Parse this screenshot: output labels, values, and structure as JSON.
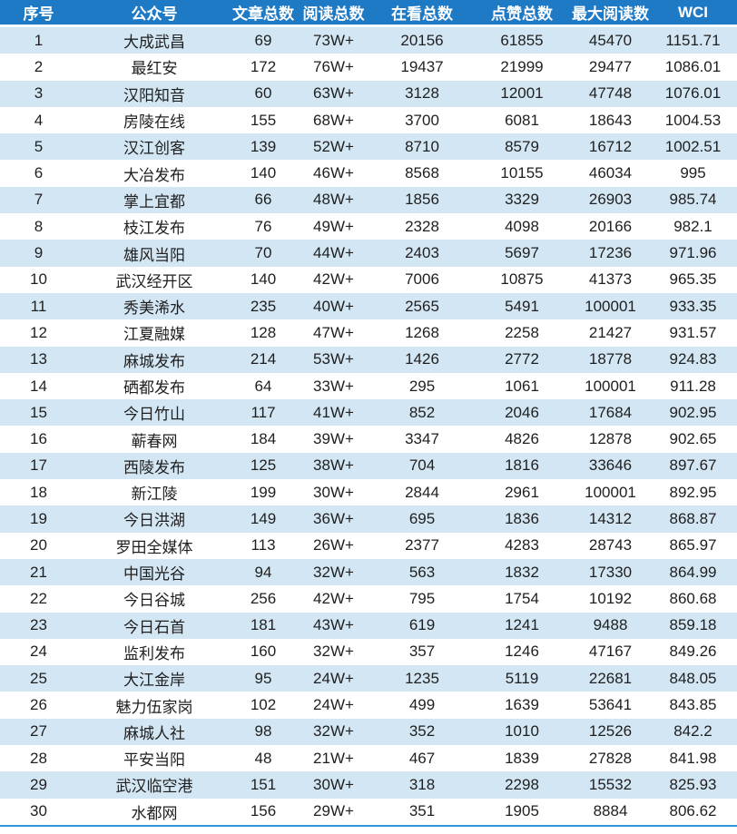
{
  "colors": {
    "header_bg": "#1f7ac6",
    "header_text": "#ffffff",
    "row_alt_bg": "#d3e6f3",
    "row_bg": "#ffffff",
    "body_text": "#1f1f1f",
    "bottom_line": "#2e96d2"
  },
  "chart_data": {
    "type": "table",
    "title": "",
    "legend_position": "none",
    "grid": "off",
    "columns": [
      "序号",
      "公众号",
      "文章总数",
      "阅读总数",
      "在看总数",
      "点赞总数",
      "最大阅读数",
      "WCI"
    ],
    "rows": [
      [
        "1",
        "大成武昌",
        "69",
        "73W+",
        "20156",
        "61855",
        "45470",
        "1151.71"
      ],
      [
        "2",
        "最红安",
        "172",
        "76W+",
        "19437",
        "21999",
        "29477",
        "1086.01"
      ],
      [
        "3",
        "汉阳知音",
        "60",
        "63W+",
        "3128",
        "12001",
        "47748",
        "1076.01"
      ],
      [
        "4",
        "房陵在线",
        "155",
        "68W+",
        "3700",
        "6081",
        "18643",
        "1004.53"
      ],
      [
        "5",
        "汉江创客",
        "139",
        "52W+",
        "8710",
        "8579",
        "16712",
        "1002.51"
      ],
      [
        "6",
        "大冶发布",
        "140",
        "46W+",
        "8568",
        "10155",
        "46034",
        "995"
      ],
      [
        "7",
        "掌上宜都",
        "66",
        "48W+",
        "1856",
        "3329",
        "26903",
        "985.74"
      ],
      [
        "8",
        "枝江发布",
        "76",
        "49W+",
        "2328",
        "4098",
        "20166",
        "982.1"
      ],
      [
        "9",
        "雄风当阳",
        "70",
        "44W+",
        "2403",
        "5697",
        "17236",
        "971.96"
      ],
      [
        "10",
        "武汉经开区",
        "140",
        "42W+",
        "7006",
        "10875",
        "41373",
        "965.35"
      ],
      [
        "11",
        "秀美浠水",
        "235",
        "40W+",
        "2565",
        "5491",
        "100001",
        "933.35"
      ],
      [
        "12",
        "江夏融媒",
        "128",
        "47W+",
        "1268",
        "2258",
        "21427",
        "931.57"
      ],
      [
        "13",
        "麻城发布",
        "214",
        "53W+",
        "1426",
        "2772",
        "18778",
        "924.83"
      ],
      [
        "14",
        "硒都发布",
        "64",
        "33W+",
        "295",
        "1061",
        "100001",
        "911.28"
      ],
      [
        "15",
        "今日竹山",
        "117",
        "41W+",
        "852",
        "2046",
        "17684",
        "902.95"
      ],
      [
        "16",
        "蕲春网",
        "184",
        "39W+",
        "3347",
        "4826",
        "12878",
        "902.65"
      ],
      [
        "17",
        "西陵发布",
        "125",
        "38W+",
        "704",
        "1816",
        "33646",
        "897.67"
      ],
      [
        "18",
        "新江陵",
        "199",
        "30W+",
        "2844",
        "2961",
        "100001",
        "892.95"
      ],
      [
        "19",
        "今日洪湖",
        "149",
        "36W+",
        "695",
        "1836",
        "14312",
        "868.87"
      ],
      [
        "20",
        "罗田全媒体",
        "113",
        "26W+",
        "2377",
        "4283",
        "28743",
        "865.97"
      ],
      [
        "21",
        "中国光谷",
        "94",
        "32W+",
        "563",
        "1832",
        "17330",
        "864.99"
      ],
      [
        "22",
        "今日谷城",
        "256",
        "42W+",
        "795",
        "1754",
        "10192",
        "860.68"
      ],
      [
        "23",
        "今日石首",
        "181",
        "43W+",
        "619",
        "1241",
        "9488",
        "859.18"
      ],
      [
        "24",
        "监利发布",
        "160",
        "32W+",
        "357",
        "1246",
        "47167",
        "849.26"
      ],
      [
        "25",
        "大江金岸",
        "95",
        "24W+",
        "1235",
        "5119",
        "22681",
        "848.05"
      ],
      [
        "26",
        "魅力伍家岗",
        "102",
        "24W+",
        "499",
        "1639",
        "53641",
        "843.85"
      ],
      [
        "27",
        "麻城人社",
        "98",
        "32W+",
        "352",
        "1010",
        "12526",
        "842.2"
      ],
      [
        "28",
        "平安当阳",
        "48",
        "21W+",
        "467",
        "1839",
        "27828",
        "841.98"
      ],
      [
        "29",
        "武汉临空港",
        "151",
        "30W+",
        "318",
        "2298",
        "15532",
        "825.93"
      ],
      [
        "30",
        "水都网",
        "156",
        "29W+",
        "351",
        "1905",
        "8884",
        "806.62"
      ]
    ]
  }
}
